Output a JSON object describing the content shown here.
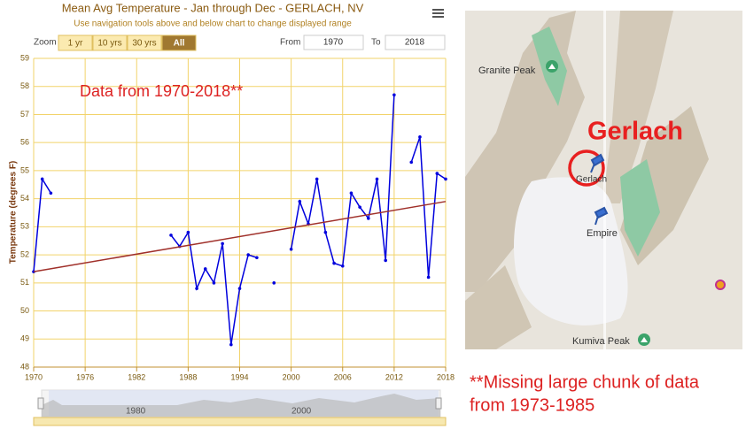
{
  "chart_data": {
    "type": "line",
    "title": "Mean Avg Temperature - Jan through Dec - GERLACH, NV",
    "subtitle": "Use navigation tools above and below chart to change displayed range",
    "y_label": "Temperature (degrees F)",
    "x": [
      1970,
      1971,
      1972,
      1973,
      1974,
      1975,
      1976,
      1977,
      1978,
      1979,
      1980,
      1981,
      1982,
      1983,
      1984,
      1985,
      1986,
      1987,
      1988,
      1989,
      1990,
      1991,
      1992,
      1993,
      1994,
      1995,
      1996,
      1997,
      1998,
      1999,
      2000,
      2001,
      2002,
      2003,
      2004,
      2005,
      2006,
      2007,
      2008,
      2009,
      2010,
      2011,
      2012,
      2013,
      2014,
      2015,
      2016,
      2017,
      2018
    ],
    "series": [
      {
        "color": "#0000dd",
        "values": [
          51.4,
          54.7,
          54.2,
          null,
          null,
          null,
          null,
          null,
          null,
          null,
          null,
          null,
          null,
          null,
          null,
          null,
          52.7,
          52.3,
          52.8,
          50.8,
          51.5,
          51.0,
          52.4,
          48.8,
          50.8,
          52.0,
          51.9,
          null,
          51.0,
          null,
          52.2,
          53.9,
          53.1,
          54.7,
          52.8,
          51.7,
          51.6,
          54.2,
          53.7,
          53.3,
          54.7,
          51.8,
          57.7,
          null,
          55.3,
          56.2,
          51.2,
          54.9,
          54.7
        ]
      }
    ],
    "trend": {
      "color": "#a0302a",
      "x": [
        1970,
        2018
      ],
      "values": [
        51.4,
        53.9
      ]
    },
    "xlim": [
      1970,
      2018
    ],
    "xticks": [
      1970,
      1976,
      1982,
      1988,
      1994,
      2000,
      2006,
      2012,
      2018
    ],
    "ylim": [
      48,
      59
    ],
    "yticks": [
      48,
      49,
      50,
      51,
      52,
      53,
      54,
      55,
      56,
      57,
      58,
      59
    ],
    "grid": true,
    "annotation": "Data from 1970-2018**"
  },
  "range_selector": {
    "zoom_label": "Zoom",
    "buttons": [
      "1 yr",
      "10 yrs",
      "30 yrs",
      "All"
    ],
    "from_label": "From",
    "from": "1970",
    "to_label": "To",
    "to": "2018"
  },
  "navigator": {
    "labels": [
      "1980",
      "2000"
    ]
  },
  "map": {
    "title": "Gerlach",
    "places": [
      "Granite Peak",
      "Gerlach",
      "Empire",
      "Kumiva Peak"
    ]
  },
  "note": [
    "**Missing large chunk of data",
    "from 1973-1985"
  ]
}
